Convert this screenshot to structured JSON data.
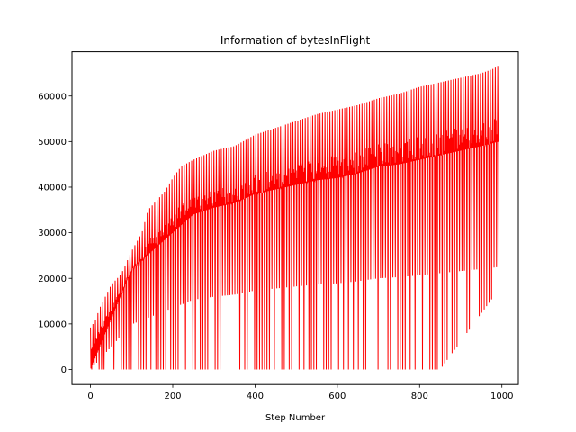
{
  "chart_data": {
    "type": "line",
    "title": "Information of bytesInFlight",
    "xlabel": "Step Number",
    "ylabel": "",
    "xlim": [
      -45,
      1040
    ],
    "ylim": [
      -3300,
      69700
    ],
    "x_ticks": [
      0,
      200,
      400,
      600,
      800,
      1000
    ],
    "y_ticks": [
      0,
      10000,
      20000,
      30000,
      40000,
      50000,
      60000
    ],
    "grid": false,
    "legend": "none",
    "series": [
      {
        "color": "#ff0000",
        "x_step": 1,
        "upper_envelope": [
          [
            0,
            9200
          ],
          [
            10,
            10500
          ],
          [
            25,
            14000
          ],
          [
            50,
            18500
          ],
          [
            75,
            21000
          ],
          [
            100,
            26000
          ],
          [
            125,
            30000
          ],
          [
            140,
            35000
          ],
          [
            160,
            37000
          ],
          [
            180,
            39000
          ],
          [
            200,
            42000
          ],
          [
            220,
            44500
          ],
          [
            250,
            46000
          ],
          [
            300,
            48000
          ],
          [
            350,
            49000
          ],
          [
            400,
            51500
          ],
          [
            450,
            53000
          ],
          [
            500,
            54500
          ],
          [
            550,
            56000
          ],
          [
            600,
            57000
          ],
          [
            650,
            58000
          ],
          [
            700,
            59500
          ],
          [
            750,
            60500
          ],
          [
            800,
            62000
          ],
          [
            850,
            63000
          ],
          [
            900,
            64000
          ],
          [
            950,
            65000
          ],
          [
            980,
            66000
          ],
          [
            993,
            66800
          ]
        ],
        "lower_envelope": [
          [
            0,
            0
          ],
          [
            200,
            0
          ],
          [
            400,
            0
          ],
          [
            600,
            0
          ],
          [
            700,
            0
          ],
          [
            800,
            0
          ],
          [
            850,
            0
          ],
          [
            980,
            16000
          ],
          [
            993,
            33000
          ]
        ],
        "baseline_envelope": [
          [
            0,
            0
          ],
          [
            100,
            22000
          ],
          [
            150,
            26000
          ],
          [
            200,
            30000
          ],
          [
            250,
            34000
          ],
          [
            300,
            35500
          ],
          [
            350,
            36500
          ],
          [
            400,
            38500
          ],
          [
            450,
            39500
          ],
          [
            500,
            40500
          ],
          [
            550,
            41500
          ],
          [
            600,
            42000
          ],
          [
            650,
            43000
          ],
          [
            700,
            44500
          ],
          [
            750,
            45000
          ],
          [
            800,
            46000
          ],
          [
            850,
            47000
          ],
          [
            900,
            48000
          ],
          [
            950,
            49000
          ],
          [
            993,
            50000
          ]
        ]
      }
    ]
  }
}
